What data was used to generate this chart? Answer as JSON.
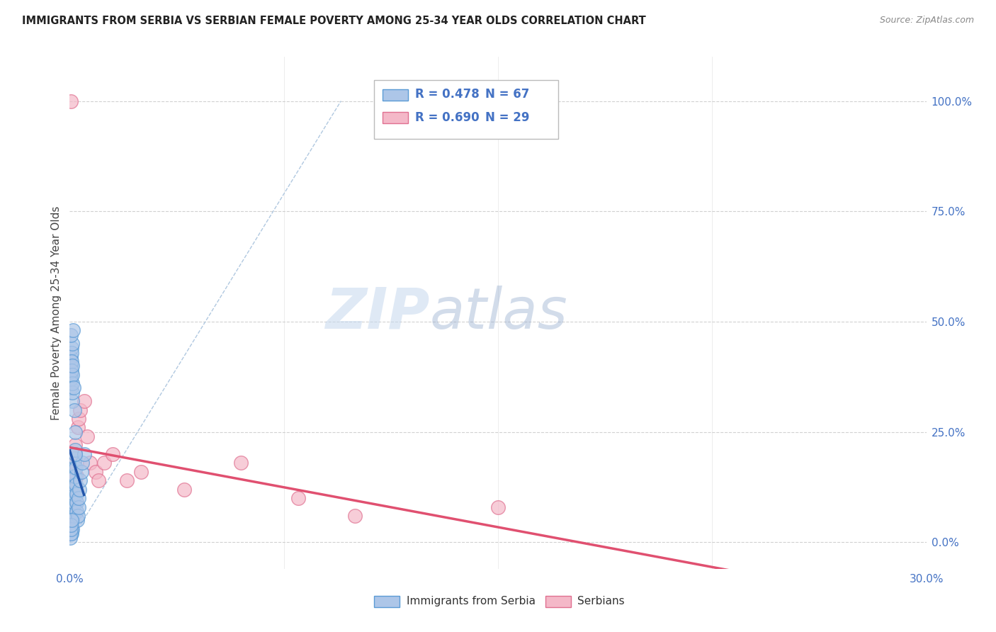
{
  "title": "IMMIGRANTS FROM SERBIA VS SERBIAN FEMALE POVERTY AMONG 25-34 YEAR OLDS CORRELATION CHART",
  "source": "Source: ZipAtlas.com",
  "ylabel": "Female Poverty Among 25-34 Year Olds",
  "yticks": [
    0.0,
    0.25,
    0.5,
    0.75,
    1.0
  ],
  "ytick_labels": [
    "0.0%",
    "25.0%",
    "50.0%",
    "75.0%",
    "100.0%"
  ],
  "xlim": [
    0.0,
    0.3
  ],
  "ylim": [
    -0.06,
    1.1
  ],
  "series1_label": "Immigrants from Serbia",
  "series1_R": "0.478",
  "series1_N": "67",
  "series1_color": "#adc6e8",
  "series1_edge_color": "#5b9bd5",
  "series2_label": "Serbians",
  "series2_R": "0.690",
  "series2_N": "29",
  "series2_color": "#f4b8c8",
  "series2_edge_color": "#e07090",
  "legend_text_color": "#4472c4",
  "regression_line1_color": "#2255aa",
  "regression_line2_color": "#e05070",
  "diagonal_color": "#b0c8e0",
  "background_color": "#ffffff",
  "plot_bg_color": "#ffffff",
  "grid_color": "#cccccc",
  "scatter1_x": [
    0.0002,
    0.0003,
    0.0004,
    0.0005,
    0.0005,
    0.0006,
    0.0006,
    0.0007,
    0.0007,
    0.0008,
    0.0008,
    0.0009,
    0.0009,
    0.001,
    0.001,
    0.0011,
    0.0011,
    0.0012,
    0.0012,
    0.0013,
    0.0014,
    0.0015,
    0.0016,
    0.0017,
    0.0018,
    0.0019,
    0.002,
    0.0021,
    0.0022,
    0.0023,
    0.0024,
    0.0025,
    0.0026,
    0.0028,
    0.003,
    0.0032,
    0.0034,
    0.0036,
    0.004,
    0.0044,
    0.005,
    0.0002,
    0.0003,
    0.0004,
    0.0005,
    0.0006,
    0.0003,
    0.0004,
    0.0005,
    0.0006,
    0.0007,
    0.0004,
    0.0005,
    0.0007,
    0.0006,
    0.0008,
    0.0008,
    0.0009,
    0.0009,
    0.001,
    0.001,
    0.0003,
    0.0012,
    0.0014,
    0.0016,
    0.0018,
    0.002
  ],
  "scatter1_y": [
    0.05,
    0.08,
    0.06,
    0.1,
    0.07,
    0.05,
    0.04,
    0.03,
    0.02,
    0.06,
    0.08,
    0.05,
    0.07,
    0.03,
    0.05,
    0.06,
    0.08,
    0.1,
    0.12,
    0.09,
    0.11,
    0.13,
    0.15,
    0.17,
    0.19,
    0.21,
    0.15,
    0.17,
    0.13,
    0.11,
    0.09,
    0.07,
    0.05,
    0.06,
    0.08,
    0.1,
    0.12,
    0.14,
    0.16,
    0.18,
    0.2,
    0.01,
    0.02,
    0.03,
    0.04,
    0.05,
    0.38,
    0.4,
    0.42,
    0.44,
    0.43,
    0.35,
    0.37,
    0.41,
    0.39,
    0.45,
    0.32,
    0.34,
    0.36,
    0.38,
    0.4,
    0.47,
    0.48,
    0.35,
    0.3,
    0.25,
    0.2
  ],
  "scatter2_x": [
    0.0003,
    0.0005,
    0.0007,
    0.0008,
    0.001,
    0.0012,
    0.0014,
    0.0016,
    0.0018,
    0.002,
    0.0025,
    0.0028,
    0.003,
    0.0035,
    0.005,
    0.006,
    0.007,
    0.009,
    0.01,
    0.012,
    0.015,
    0.02,
    0.025,
    0.04,
    0.06,
    0.08,
    0.1,
    0.15,
    0.0003
  ],
  "scatter2_y": [
    0.05,
    0.1,
    0.08,
    0.12,
    0.14,
    0.06,
    0.16,
    0.18,
    0.2,
    0.22,
    0.15,
    0.26,
    0.28,
    0.3,
    0.32,
    0.24,
    0.18,
    0.16,
    0.14,
    0.18,
    0.2,
    0.14,
    0.16,
    0.12,
    0.18,
    0.1,
    0.06,
    0.08,
    1.0
  ]
}
